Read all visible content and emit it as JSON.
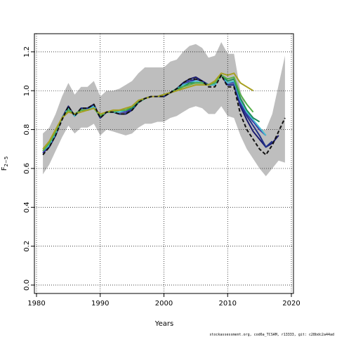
{
  "footer": "stockassessment.org, cod6a_TCSAM, r13333, git: c28bdc2a44ad",
  "chart_data": {
    "type": "line",
    "title": "",
    "xlabel": "Years",
    "ylabel": "F",
    "ylabel_subscript": "2−5",
    "xlim": [
      1980,
      2020
    ],
    "ylim": [
      0,
      1.25
    ],
    "xticks": [
      1980,
      1990,
      2000,
      2010,
      2020
    ],
    "yticks": [
      0.0,
      0.2,
      0.4,
      0.6,
      0.8,
      1.0,
      1.2
    ],
    "grid": true,
    "legend": "none",
    "band": {
      "color": "#bebebe",
      "x": [
        1981,
        1982,
        1983,
        1984,
        1985,
        1986,
        1987,
        1988,
        1989,
        1990,
        1991,
        1992,
        1993,
        1994,
        1995,
        1996,
        1997,
        1998,
        1999,
        2000,
        2001,
        2002,
        2003,
        2004,
        2005,
        2006,
        2007,
        2008,
        2009,
        2010,
        2011,
        2012,
        2013,
        2014,
        2015,
        2016,
        2017,
        2018,
        2019
      ],
      "upper": [
        0.78,
        0.81,
        0.88,
        0.97,
        1.04,
        0.98,
        1.02,
        1.02,
        1.05,
        0.97,
        1.0,
        1.0,
        1.01,
        1.03,
        1.05,
        1.09,
        1.12,
        1.12,
        1.12,
        1.12,
        1.15,
        1.16,
        1.2,
        1.23,
        1.24,
        1.22,
        1.17,
        1.18,
        1.25,
        1.19,
        1.19,
        1.0,
        0.9,
        0.83,
        0.8,
        0.8,
        0.88,
        1.03,
        1.18
      ],
      "lower": [
        0.57,
        0.62,
        0.69,
        0.76,
        0.82,
        0.78,
        0.81,
        0.81,
        0.83,
        0.77,
        0.8,
        0.79,
        0.78,
        0.77,
        0.78,
        0.81,
        0.83,
        0.83,
        0.84,
        0.84,
        0.86,
        0.87,
        0.89,
        0.91,
        0.92,
        0.91,
        0.88,
        0.88,
        0.92,
        0.87,
        0.86,
        0.77,
        0.7,
        0.65,
        0.6,
        0.56,
        0.6,
        0.64,
        0.63
      ]
    },
    "series": [
      {
        "color": "#1a1a6e",
        "dash": "",
        "x": [
          1981,
          1982,
          1983,
          1984,
          1985,
          1986,
          1987,
          1988,
          1989,
          1990,
          1991,
          1992,
          1993,
          1994,
          1995,
          1996,
          1997,
          1998,
          1999,
          2000,
          2001,
          2002,
          2003,
          2004,
          2005,
          2006,
          2007,
          2008,
          2009,
          2010,
          2011,
          2012,
          2013,
          2014,
          2015,
          2016,
          2017,
          2018
        ],
        "values": [
          0.68,
          0.71,
          0.77,
          0.86,
          0.92,
          0.87,
          0.91,
          0.91,
          0.93,
          0.86,
          0.89,
          0.89,
          0.88,
          0.88,
          0.9,
          0.94,
          0.96,
          0.97,
          0.97,
          0.97,
          0.99,
          1.01,
          1.04,
          1.06,
          1.07,
          1.05,
          1.03,
          1.03,
          1.08,
          1.03,
          1.03,
          0.92,
          0.85,
          0.79,
          0.75,
          0.71,
          0.73,
          0.77
        ]
      },
      {
        "color": "#20308a",
        "dash": "",
        "x": [
          1981,
          1982,
          1983,
          1984,
          1985,
          1986,
          1987,
          1988,
          1989,
          1990,
          1991,
          1992,
          1993,
          1994,
          1995,
          1996,
          1997,
          1998,
          1999,
          2000,
          2001,
          2002,
          2003,
          2004,
          2005,
          2006,
          2007,
          2008,
          2009,
          2010,
          2011,
          2012,
          2013,
          2014,
          2015,
          2016,
          2017
        ],
        "values": [
          0.68,
          0.72,
          0.78,
          0.86,
          0.91,
          0.87,
          0.91,
          0.91,
          0.92,
          0.86,
          0.89,
          0.89,
          0.89,
          0.89,
          0.9,
          0.94,
          0.96,
          0.97,
          0.97,
          0.97,
          0.99,
          1.01,
          1.03,
          1.05,
          1.06,
          1.05,
          1.03,
          1.03,
          1.08,
          1.03,
          1.03,
          0.93,
          0.87,
          0.82,
          0.77,
          0.71,
          0.74
        ]
      },
      {
        "color": "#3a3aa8",
        "dash": "",
        "x": [
          1981,
          1982,
          1983,
          1984,
          1985,
          1986,
          1987,
          1988,
          1989,
          1990,
          1991,
          1992,
          1993,
          1994,
          1995,
          1996,
          1997,
          1998,
          1999,
          2000,
          2001,
          2002,
          2003,
          2004,
          2005,
          2006,
          2007,
          2008,
          2009,
          2010,
          2011,
          2012,
          2013,
          2014,
          2015,
          2016
        ],
        "values": [
          0.68,
          0.72,
          0.78,
          0.86,
          0.91,
          0.87,
          0.9,
          0.9,
          0.92,
          0.87,
          0.89,
          0.89,
          0.89,
          0.89,
          0.91,
          0.94,
          0.96,
          0.97,
          0.97,
          0.98,
          0.99,
          1.01,
          1.03,
          1.05,
          1.05,
          1.04,
          1.03,
          1.03,
          1.08,
          1.04,
          1.04,
          0.94,
          0.88,
          0.84,
          0.8,
          0.77
        ]
      },
      {
        "color": "#4ac0d0",
        "dash": "",
        "x": [
          1981,
          1982,
          1983,
          1984,
          1985,
          1986,
          1987,
          1988,
          1989,
          1990,
          1991,
          1992,
          1993,
          1994,
          1995,
          1996,
          1997,
          1998,
          1999,
          2000,
          2001,
          2002,
          2003,
          2004,
          2005,
          2006,
          2007,
          2008,
          2009,
          2010,
          2011,
          2012,
          2013,
          2014,
          2015,
          2016
        ],
        "values": [
          0.69,
          0.72,
          0.78,
          0.86,
          0.91,
          0.87,
          0.9,
          0.9,
          0.92,
          0.87,
          0.89,
          0.89,
          0.89,
          0.9,
          0.91,
          0.94,
          0.96,
          0.97,
          0.97,
          0.98,
          0.99,
          1.01,
          1.03,
          1.04,
          1.05,
          1.04,
          1.03,
          1.03,
          1.08,
          1.04,
          1.05,
          0.95,
          0.89,
          0.85,
          0.81,
          0.77
        ]
      },
      {
        "color": "#1f8a5a",
        "dash": "",
        "x": [
          1981,
          1982,
          1983,
          1984,
          1985,
          1986,
          1987,
          1988,
          1989,
          1990,
          1991,
          1992,
          1993,
          1994,
          1995,
          1996,
          1997,
          1998,
          1999,
          2000,
          2001,
          2002,
          2003,
          2004,
          2005,
          2006,
          2007,
          2008,
          2009,
          2010,
          2011,
          2012,
          2013,
          2014,
          2015
        ],
        "values": [
          0.69,
          0.73,
          0.79,
          0.86,
          0.9,
          0.88,
          0.9,
          0.9,
          0.91,
          0.87,
          0.89,
          0.89,
          0.9,
          0.9,
          0.91,
          0.94,
          0.96,
          0.97,
          0.97,
          0.98,
          0.99,
          1.01,
          1.02,
          1.04,
          1.04,
          1.04,
          1.03,
          1.04,
          1.08,
          1.05,
          1.06,
          0.96,
          0.9,
          0.86,
          0.84
        ]
      },
      {
        "color": "#56b04a",
        "dash": "",
        "x": [
          1981,
          1982,
          1983,
          1984,
          1985,
          1986,
          1987,
          1988,
          1989,
          1990,
          1991,
          1992,
          1993,
          1994,
          1995,
          1996,
          1997,
          1998,
          1999,
          2000,
          2001,
          2002,
          2003,
          2004,
          2005,
          2006,
          2007,
          2008,
          2009,
          2010,
          2011,
          2012,
          2013,
          2014
        ],
        "values": [
          0.69,
          0.73,
          0.79,
          0.86,
          0.9,
          0.88,
          0.9,
          0.9,
          0.91,
          0.87,
          0.89,
          0.89,
          0.9,
          0.9,
          0.92,
          0.95,
          0.96,
          0.97,
          0.97,
          0.98,
          0.99,
          1.0,
          1.02,
          1.03,
          1.04,
          1.04,
          1.03,
          1.04,
          1.08,
          1.06,
          1.07,
          0.98,
          0.93,
          0.89
        ]
      },
      {
        "color": "#a8a020",
        "dash": "",
        "x": [
          1981,
          1982,
          1983,
          1984,
          1985,
          1986,
          1987,
          1988,
          1989,
          1990,
          1991,
          1992,
          1993,
          1994,
          1995,
          1996,
          1997,
          1998,
          1999,
          2000,
          2001,
          2002,
          2003,
          2004,
          2005,
          2006,
          2007,
          2008,
          2009,
          2010,
          2011,
          2012,
          2013,
          2014
        ],
        "values": [
          0.7,
          0.74,
          0.8,
          0.86,
          0.89,
          0.88,
          0.89,
          0.9,
          0.91,
          0.88,
          0.89,
          0.9,
          0.9,
          0.91,
          0.92,
          0.95,
          0.96,
          0.97,
          0.97,
          0.98,
          0.99,
          1.0,
          1.01,
          1.02,
          1.03,
          1.03,
          1.03,
          1.05,
          1.09,
          1.08,
          1.09,
          1.04,
          1.02,
          1.0
        ]
      },
      {
        "color": "#111111",
        "dash": "5,3",
        "x": [
          1981,
          1982,
          1983,
          1984,
          1985,
          1986,
          1987,
          1988,
          1989,
          1990,
          1991,
          1992,
          1993,
          1994,
          1995,
          1996,
          1997,
          1998,
          1999,
          2000,
          2001,
          2002,
          2003,
          2004,
          2005,
          2006,
          2007,
          2008,
          2009,
          2010,
          2011,
          2012,
          2013,
          2014,
          2015,
          2016,
          2017,
          2018,
          2019
        ],
        "values": [
          0.67,
          0.71,
          0.77,
          0.85,
          0.92,
          0.87,
          0.91,
          0.91,
          0.93,
          0.86,
          0.89,
          0.89,
          0.88,
          0.88,
          0.9,
          0.94,
          0.96,
          0.97,
          0.97,
          0.97,
          0.99,
          1.01,
          1.04,
          1.06,
          1.06,
          1.05,
          1.02,
          1.02,
          1.08,
          1.02,
          1.02,
          0.88,
          0.8,
          0.75,
          0.7,
          0.67,
          0.72,
          0.79,
          0.86
        ]
      }
    ]
  }
}
